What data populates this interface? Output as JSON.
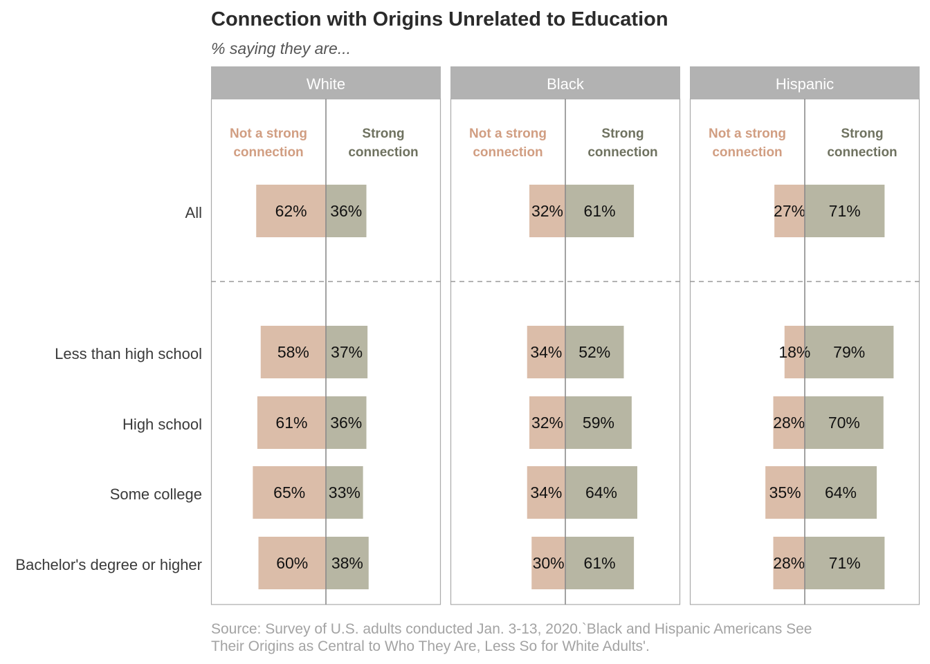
{
  "title": "Connection with Origins Unrelated to Education",
  "subtitle": "% saying they are...",
  "source_line1": "Source: Survey of U.S. adults conducted Jan. 3-13, 2020.`Black and Hispanic Americans See",
  "source_line2": "Their Origins as Central to Who They Are, Less So for White Adults'.",
  "colors": {
    "not_strong": "#dbbda9",
    "strong": "#b7b6a3",
    "not_strong_text": "#d19e82",
    "strong_text": "#6f7260",
    "strip": "#b2b2b2"
  },
  "chart_data": {
    "type": "bar",
    "orientation": "horizontal-diverging",
    "facets": [
      "White",
      "Black",
      "Hispanic"
    ],
    "categories": [
      "All",
      "Less than high school",
      "High school",
      "Some college",
      "Bachelor's degree or higher"
    ],
    "legend_labels": {
      "not_strong": [
        "Not a strong",
        "connection"
      ],
      "strong": [
        "Strong",
        "connection"
      ]
    },
    "series": [
      {
        "name": "Not a strong connection",
        "values": {
          "White": [
            62,
            58,
            61,
            65,
            60
          ],
          "Black": [
            32,
            34,
            32,
            34,
            30
          ],
          "Hispanic": [
            27,
            18,
            28,
            35,
            28
          ]
        }
      },
      {
        "name": "Strong connection",
        "values": {
          "White": [
            36,
            37,
            36,
            33,
            38
          ],
          "Black": [
            61,
            52,
            59,
            64,
            61
          ],
          "Hispanic": [
            71,
            79,
            70,
            64,
            71
          ]
        }
      }
    ],
    "value_suffix": "%",
    "grid": false
  }
}
